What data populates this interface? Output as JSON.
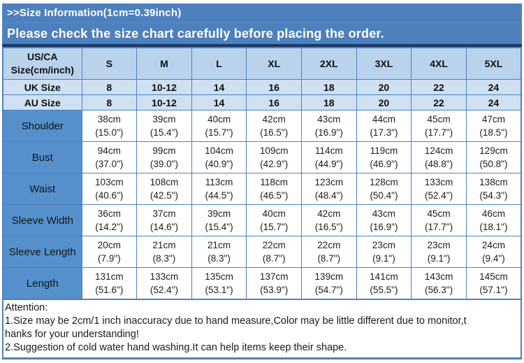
{
  "header": {
    "title": ">>Size Information(1cm=0.39inch)",
    "subtitle": "Please check the size chart carefully before placing the order."
  },
  "table": {
    "corner_label": "US/CA\nSize(cm/inch)",
    "size_headers": [
      "S",
      "M",
      "L",
      "XL",
      "2XL",
      "3XL",
      "4XL",
      "5XL"
    ],
    "size_rows": [
      {
        "label": "UK Size",
        "values": [
          "8",
          "10-12",
          "14",
          "16",
          "18",
          "20",
          "22",
          "24"
        ]
      },
      {
        "label": "AU Size",
        "values": [
          "8",
          "10-12",
          "14",
          "16",
          "18",
          "20",
          "22",
          "24"
        ]
      }
    ],
    "measure_rows": [
      {
        "label": "Shoulder",
        "values": [
          [
            "38cm",
            "(15.0\")"
          ],
          [
            "39cm",
            "(15.4\")"
          ],
          [
            "40cm",
            "(15.7\")"
          ],
          [
            "42cm",
            "(16.5\")"
          ],
          [
            "43cm",
            "(16.9\")"
          ],
          [
            "44cm",
            "(17.3\")"
          ],
          [
            "45cm",
            "(17.7\")"
          ],
          [
            "47cm",
            "(18.5\")"
          ]
        ]
      },
      {
        "label": "Bust",
        "values": [
          [
            "94cm",
            "(37.0\")"
          ],
          [
            "99cm",
            "(39.0\")"
          ],
          [
            "104cm",
            "(40.9\")"
          ],
          [
            "109cm",
            "(42.9\")"
          ],
          [
            "114cm",
            "(44.9\")"
          ],
          [
            "119cm",
            "(46.9\")"
          ],
          [
            "124cm",
            "(48.8\")"
          ],
          [
            "129cm",
            "(50.8\")"
          ]
        ]
      },
      {
        "label": "Waist",
        "values": [
          [
            "103cm",
            "(40.6\")"
          ],
          [
            "108cm",
            "(42.5\")"
          ],
          [
            "113cm",
            "(44.5\")"
          ],
          [
            "118cm",
            "(46.5\")"
          ],
          [
            "123cm",
            "(48.4\")"
          ],
          [
            "128cm",
            "(50.4\")"
          ],
          [
            "133cm",
            "(52.4\")"
          ],
          [
            "138cm",
            "(54.3\")"
          ]
        ]
      },
      {
        "label": "Sleeve Width",
        "values": [
          [
            "36cm",
            "(14.2\")"
          ],
          [
            "37cm",
            "(14.6\")"
          ],
          [
            "39cm",
            "(15.4\")"
          ],
          [
            "40cm",
            "(15.7\")"
          ],
          [
            "42cm",
            "(16.5\")"
          ],
          [
            "43cm",
            "(16.9\")"
          ],
          [
            "45cm",
            "(17.7\")"
          ],
          [
            "46cm",
            "(18.1\")"
          ]
        ]
      },
      {
        "label": "Sleeve Length",
        "values": [
          [
            "20cm",
            "(7.9\")"
          ],
          [
            "21cm",
            "(8.3\")"
          ],
          [
            "21cm",
            "(8.3\")"
          ],
          [
            "22cm",
            "(8.7\")"
          ],
          [
            "22cm",
            "(8.7\")"
          ],
          [
            "23cm",
            "(9.1\")"
          ],
          [
            "23cm",
            "(9.1\")"
          ],
          [
            "24cm",
            "(9.4\")"
          ]
        ]
      },
      {
        "label": "Length",
        "values": [
          [
            "131cm",
            "(51.6\")"
          ],
          [
            "133cm",
            "(52.4\")"
          ],
          [
            "135cm",
            "(53.1\")"
          ],
          [
            "137cm",
            "(53.9\")"
          ],
          [
            "139cm",
            "(54.7\")"
          ],
          [
            "141cm",
            "(55.5\")"
          ],
          [
            "143cm",
            "(56.3\")"
          ],
          [
            "145cm",
            "(57.1\")"
          ]
        ]
      }
    ]
  },
  "attention": {
    "lines": [
      "Attention:",
      "1.Size may be 2cm/1 inch inaccuracy due to hand measure,Color may be little different due to monitor,t",
      "hanks for your understanding!",
      "2.Suggestion of cold water hand washing.It can help items keep their shape."
    ]
  },
  "colors": {
    "bar_blue": "#4d80bd",
    "dark_divider": "#1b3a66",
    "header_row_bg": "#b9d3ec",
    "size_row_bg": "#cfe0f3",
    "label_cell_bg": "#5590cd",
    "grid_border": "#4f81bd"
  }
}
